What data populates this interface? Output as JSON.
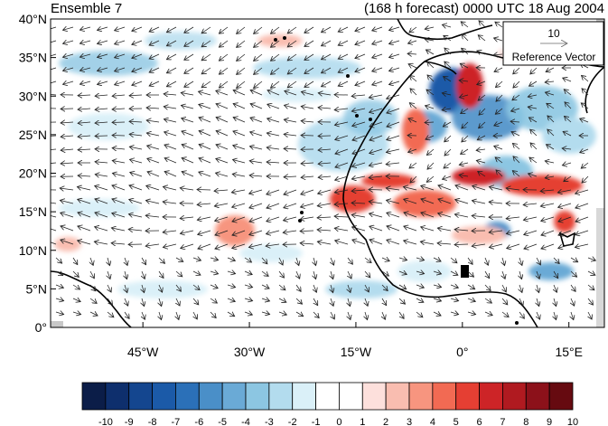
{
  "header": {
    "left_title": "Ensemble 7",
    "right_title": "(168 h forecast) 0000 UTC 18 Aug 2004"
  },
  "map": {
    "lat_labels": [
      "40°N",
      "35°N",
      "30°N",
      "25°N",
      "20°N",
      "15°N",
      "10°N",
      "5°N",
      "0°"
    ],
    "lat_values": [
      40,
      35,
      30,
      25,
      20,
      15,
      10,
      5,
      0
    ],
    "lon_labels": [
      "45°W",
      "30°W",
      "15°W",
      "0°",
      "15°E"
    ],
    "lon_values": [
      -45,
      -30,
      -15,
      0,
      15
    ],
    "lon_range": [
      -58,
      20
    ],
    "lat_range": [
      0,
      40
    ]
  },
  "reference_vector": {
    "magnitude": "10",
    "label": "Reference Vector"
  },
  "colorbar": {
    "labels": [
      "-10",
      "-9",
      "-8",
      "-7",
      "-6",
      "-5",
      "-4",
      "-3",
      "-2",
      "-1",
      "0",
      "1",
      "2",
      "3",
      "4",
      "5",
      "6",
      "7",
      "8",
      "9",
      "10"
    ],
    "colors": [
      "#0b1d48",
      "#0e2f6d",
      "#14468f",
      "#1b5aa8",
      "#2b70b8",
      "#4a8fc8",
      "#6aaad6",
      "#8cc6e2",
      "#b3dcee",
      "#daf0f8",
      "#ffffff",
      "#ffffff",
      "#fde0dc",
      "#f9bdb0",
      "#f7957f",
      "#f26a53",
      "#e53f33",
      "#cd2427",
      "#b01a20",
      "#8c111a",
      "#660a10"
    ]
  }
}
